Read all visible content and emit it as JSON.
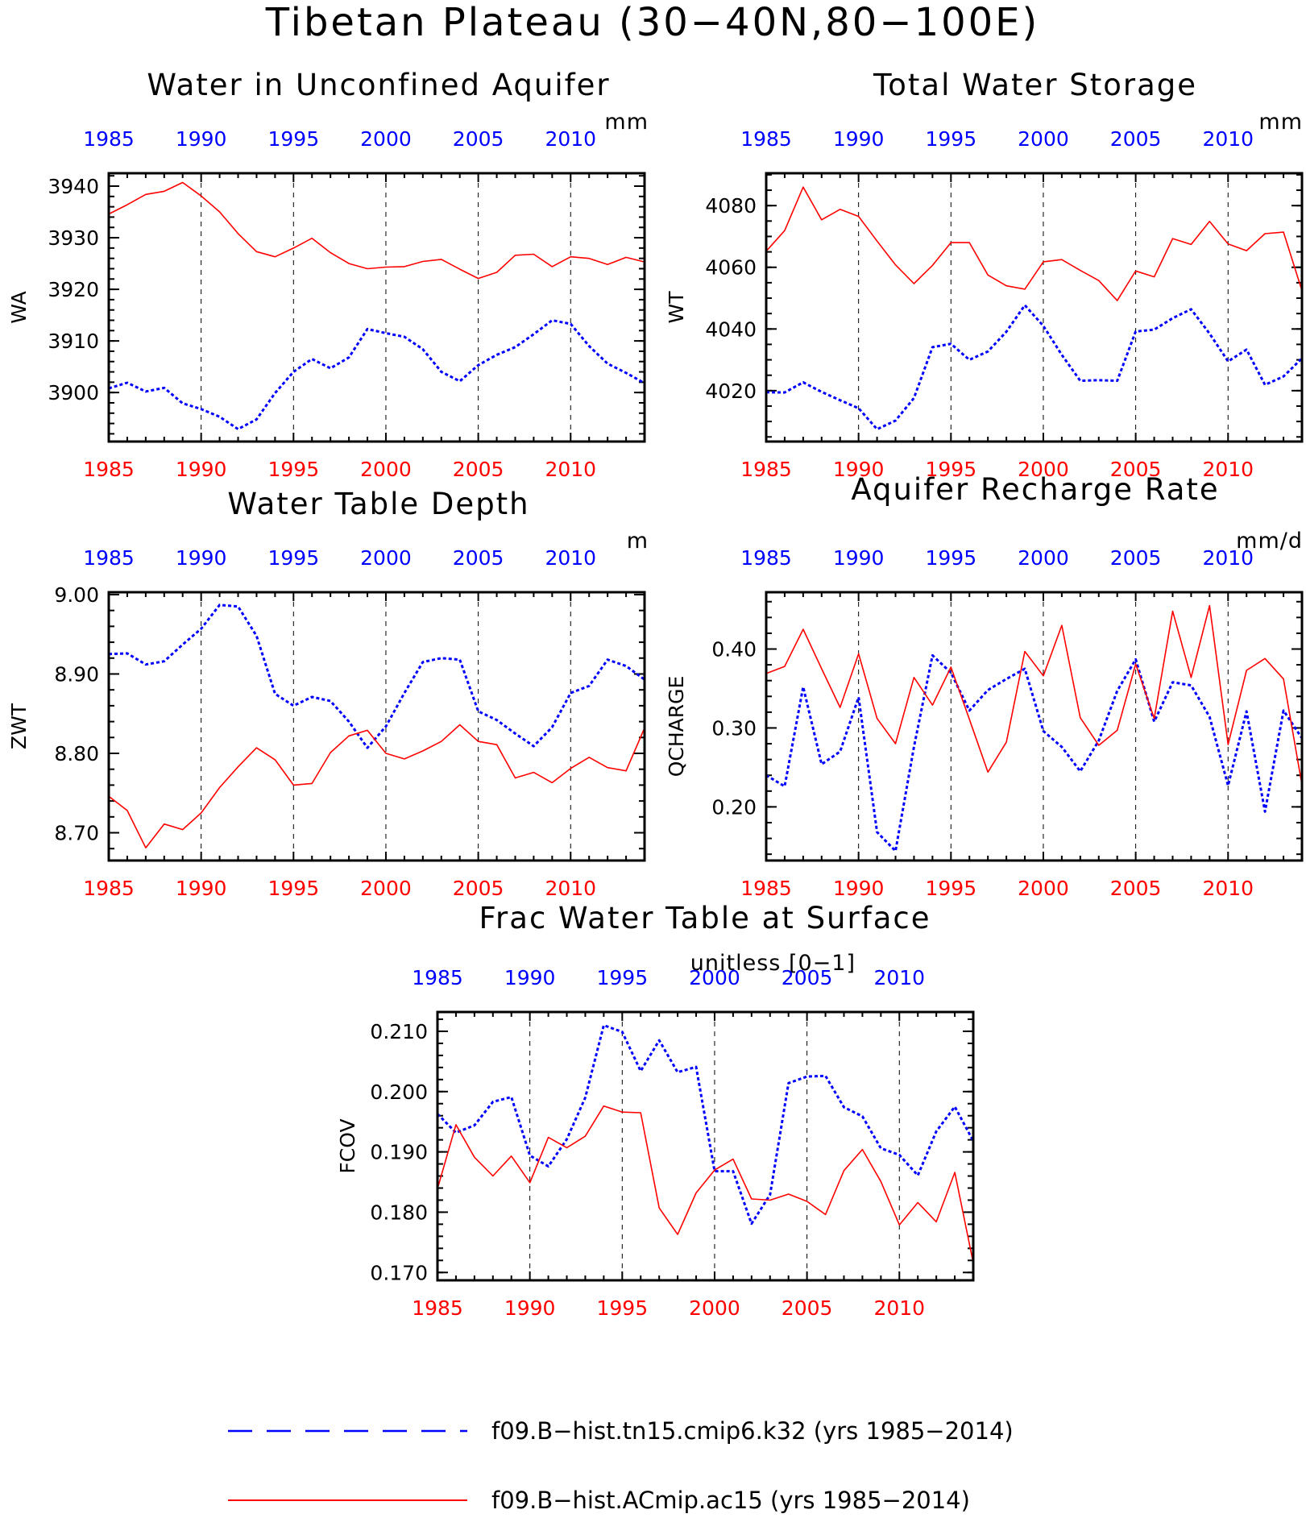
{
  "figure": {
    "title": "Tibetan Plateau (30−40N,80−100E)",
    "legend": {
      "entries": [
        {
          "label": "f09.B−hist.tn15.cmip6.k32 (yrs 1985−2014)",
          "color": "#0000ff",
          "style": "dashed"
        },
        {
          "label": "f09.B−hist.ACmip.ac15 (yrs 1985−2014)",
          "color": "#ff0000",
          "style": "solid"
        }
      ]
    }
  },
  "chart_data": [
    {
      "type": "line",
      "title": "Water in Unconfined Aquifer",
      "ylabel": "WA",
      "units": "mm",
      "xlim": [
        1985,
        2014
      ],
      "ylim": [
        3890.5,
        3942.5
      ],
      "yticks": [
        3900,
        3910,
        3920,
        3930,
        3940
      ],
      "yminor": 2,
      "ydec": 0,
      "x": [
        1985,
        1986,
        1987,
        1988,
        1989,
        1990,
        1991,
        1992,
        1993,
        1994,
        1995,
        1996,
        1997,
        1998,
        1999,
        2000,
        2001,
        2002,
        2003,
        2004,
        2005,
        2006,
        2007,
        2008,
        2009,
        2010,
        2011,
        2012,
        2013,
        2014
      ],
      "series": [
        {
          "name": "f09.B−hist.tn15.cmip6.k32",
          "color": "#0000ff",
          "dash": true,
          "values": [
            3900.8,
            3901.9,
            3900.2,
            3900.9,
            3897.9,
            3896.8,
            3895.3,
            3892.9,
            3894.8,
            3899.9,
            3904.0,
            3906.5,
            3904.7,
            3906.8,
            3912.3,
            3911.5,
            3910.8,
            3908.4,
            3904.0,
            3902.2,
            3905.3,
            3907.3,
            3908.8,
            3911.3,
            3914.0,
            3913.3,
            3909.0,
            3905.6,
            3903.8,
            3901.8
          ]
        },
        {
          "name": "f09.B−hist.ACmip.ac15",
          "color": "#ff0000",
          "dash": false,
          "values": [
            3934.6,
            3936.4,
            3938.4,
            3939.0,
            3940.7,
            3938.1,
            3935.0,
            3930.8,
            3927.3,
            3926.3,
            3928.0,
            3929.9,
            3927.1,
            3925.0,
            3924.0,
            3924.3,
            3924.4,
            3925.4,
            3925.8,
            3923.9,
            3922.1,
            3923.3,
            3926.6,
            3926.8,
            3924.4,
            3926.3,
            3926.0,
            3924.8,
            3926.2,
            3925.3
          ]
        }
      ]
    },
    {
      "type": "line",
      "title": "Total Water Storage",
      "ylabel": "WT",
      "units": "mm",
      "xlim": [
        1985,
        2014
      ],
      "ylim": [
        4003.5,
        4090.5
      ],
      "yticks": [
        4020,
        4040,
        4060,
        4080
      ],
      "yminor": 5,
      "ydec": 0,
      "x": [
        1985,
        1986,
        1987,
        1988,
        1989,
        1990,
        1991,
        1992,
        1993,
        1994,
        1995,
        1996,
        1997,
        1998,
        1999,
        2000,
        2001,
        2002,
        2003,
        2004,
        2005,
        2006,
        2007,
        2008,
        2009,
        2010,
        2011,
        2012,
        2013,
        2014
      ],
      "series": [
        {
          "name": "f09.B−hist.tn15.cmip6.k32",
          "color": "#0000ff",
          "dash": true,
          "values": [
            4019.5,
            4019.4,
            4022.7,
            4019.6,
            4016.9,
            4014.3,
            4007.5,
            4010.3,
            4017.6,
            4034.1,
            4035.2,
            4030.0,
            4032.7,
            4039.1,
            4047.7,
            4041.0,
            4031.6,
            4023.2,
            4023.4,
            4023.2,
            4039.2,
            4039.8,
            4043.5,
            4046.4,
            4038.5,
            4029.5,
            4033.3,
            4021.9,
            4024.6,
            4030.5
          ]
        },
        {
          "name": "f09.B−hist.ACmip.ac15",
          "color": "#ff0000",
          "dash": false,
          "values": [
            4065.2,
            4071.9,
            4086.0,
            4075.4,
            4078.8,
            4076.5,
            4068.5,
            4060.8,
            4054.7,
            4060.6,
            4068.0,
            4068.0,
            4057.5,
            4054.0,
            4052.9,
            4061.8,
            4062.5,
            4059.0,
            4055.7,
            4049.2,
            4058.8,
            4056.9,
            4069.3,
            4067.4,
            4074.9,
            4067.6,
            4065.4,
            4070.9,
            4071.4,
            4052.4
          ]
        }
      ]
    },
    {
      "type": "line",
      "title": "Water Table Depth",
      "ylabel": "ZWT",
      "units": "m",
      "xlim": [
        1985,
        2014
      ],
      "ylim": [
        8.665,
        9.003
      ],
      "yticks": [
        8.7,
        8.8,
        8.9,
        9.0
      ],
      "yminor": 0.02,
      "ydec": 2,
      "x": [
        1985,
        1986,
        1987,
        1988,
        1989,
        1990,
        1991,
        1992,
        1993,
        1994,
        1995,
        1996,
        1997,
        1998,
        1999,
        2000,
        2001,
        2002,
        2003,
        2004,
        2005,
        2006,
        2007,
        2008,
        2009,
        2010,
        2011,
        2012,
        2013,
        2014
      ],
      "series": [
        {
          "name": "f09.B−hist.tn15.cmip6.k32",
          "color": "#0000ff",
          "dash": true,
          "values": [
            8.925,
            8.926,
            8.912,
            8.916,
            8.937,
            8.957,
            8.987,
            8.985,
            8.948,
            8.875,
            8.86,
            8.871,
            8.866,
            8.84,
            8.807,
            8.834,
            8.876,
            8.915,
            8.92,
            8.918,
            8.853,
            8.842,
            8.825,
            8.809,
            8.833,
            8.876,
            8.885,
            8.918,
            8.91,
            8.893
          ]
        },
        {
          "name": "f09.B−hist.ACmip.ac15",
          "color": "#ff0000",
          "dash": false,
          "values": [
            8.746,
            8.728,
            8.681,
            8.711,
            8.704,
            8.725,
            8.757,
            8.783,
            8.807,
            8.792,
            8.76,
            8.762,
            8.801,
            8.822,
            8.829,
            8.8,
            8.793,
            8.803,
            8.815,
            8.836,
            8.815,
            8.811,
            8.769,
            8.776,
            8.763,
            8.781,
            8.795,
            8.782,
            8.778,
            8.832
          ]
        }
      ]
    },
    {
      "type": "line",
      "title": "Aquifer Recharge Rate",
      "ylabel": "QCHARGE",
      "units": "mm/d",
      "xlim": [
        1985,
        2014
      ],
      "ylim": [
        0.132,
        0.472
      ],
      "yticks": [
        0.2,
        0.3,
        0.4
      ],
      "yminor": 0.02,
      "ydec": 2,
      "x": [
        1985,
        1986,
        1987,
        1988,
        1989,
        1990,
        1991,
        1992,
        1993,
        1994,
        1995,
        1996,
        1997,
        1998,
        1999,
        2000,
        2001,
        2002,
        2003,
        2004,
        2005,
        2006,
        2007,
        2008,
        2009,
        2010,
        2011,
        2012,
        2013,
        2014
      ],
      "series": [
        {
          "name": "f09.B−hist.tn15.cmip6.k32",
          "color": "#0000ff",
          "dash": true,
          "values": [
            0.24,
            0.226,
            0.352,
            0.254,
            0.27,
            0.339,
            0.168,
            0.144,
            0.276,
            0.392,
            0.37,
            0.322,
            0.348,
            0.362,
            0.375,
            0.296,
            0.276,
            0.245,
            0.284,
            0.347,
            0.387,
            0.308,
            0.358,
            0.354,
            0.314,
            0.227,
            0.321,
            0.194,
            0.322,
            0.287
          ]
        },
        {
          "name": "f09.B−hist.ACmip.ac15",
          "color": "#ff0000",
          "dash": false,
          "values": [
            0.369,
            0.378,
            0.425,
            0.375,
            0.326,
            0.394,
            0.312,
            0.28,
            0.364,
            0.329,
            0.377,
            0.311,
            0.244,
            0.282,
            0.397,
            0.366,
            0.43,
            0.313,
            0.278,
            0.297,
            0.381,
            0.312,
            0.448,
            0.364,
            0.455,
            0.279,
            0.373,
            0.388,
            0.362,
            0.228
          ]
        }
      ]
    },
    {
      "type": "line",
      "title": "Frac Water Table at Surface",
      "ylabel": "FCOV",
      "units": "unitless [0−1]",
      "xlim": [
        1985,
        2014
      ],
      "ylim": [
        0.1687,
        0.2132
      ],
      "yticks": [
        0.17,
        0.18,
        0.19,
        0.2,
        0.21
      ],
      "yminor": 0.002,
      "ydec": 3,
      "x": [
        1985,
        1986,
        1987,
        1988,
        1989,
        1990,
        1991,
        1992,
        1993,
        1994,
        1995,
        1996,
        1997,
        1998,
        1999,
        2000,
        2001,
        2002,
        2003,
        2004,
        2005,
        2006,
        2007,
        2008,
        2009,
        2010,
        2011,
        2012,
        2013,
        2014
      ],
      "series": [
        {
          "name": "f09.B−hist.tn15.cmip6.k32",
          "color": "#0000ff",
          "dash": true,
          "values": [
            0.1963,
            0.1932,
            0.1944,
            0.1983,
            0.1991,
            0.1894,
            0.1876,
            0.1921,
            0.199,
            0.211,
            0.2099,
            0.2034,
            0.2085,
            0.2032,
            0.2041,
            0.1868,
            0.1868,
            0.1781,
            0.1829,
            0.2014,
            0.2025,
            0.2026,
            0.1974,
            0.1959,
            0.1906,
            0.1895,
            0.1861,
            0.1934,
            0.1975,
            0.1918
          ]
        },
        {
          "name": "f09.B−hist.ACmip.ac15",
          "color": "#ff0000",
          "dash": false,
          "values": [
            0.1839,
            0.1945,
            0.1891,
            0.186,
            0.1893,
            0.1849,
            0.1924,
            0.1907,
            0.1926,
            0.1976,
            0.1966,
            0.1965,
            0.1807,
            0.1763,
            0.1832,
            0.187,
            0.1888,
            0.1822,
            0.182,
            0.183,
            0.1818,
            0.1796,
            0.1869,
            0.1904,
            0.1851,
            0.1779,
            0.1816,
            0.1784,
            0.1866,
            0.1716
          ]
        }
      ]
    }
  ]
}
